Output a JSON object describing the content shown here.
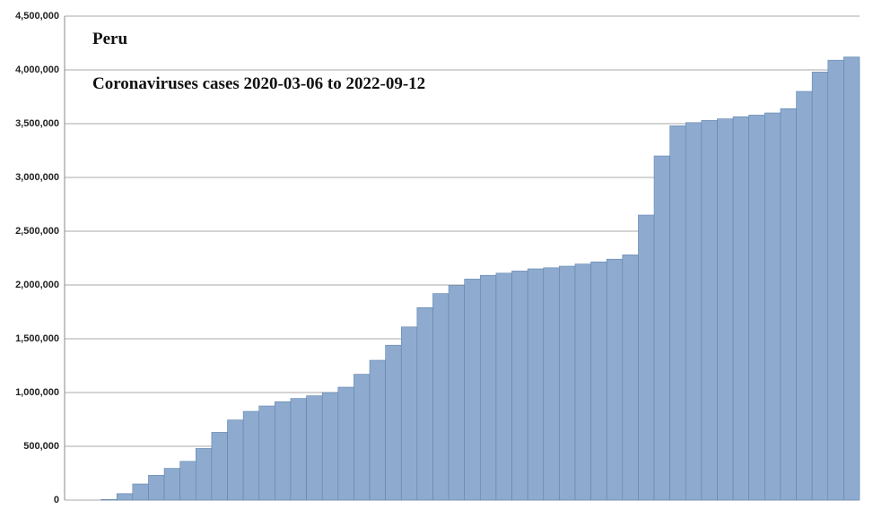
{
  "chart_data": {
    "type": "bar",
    "title": "Peru",
    "subtitle": "Coronaviruses cases 2020-03-06 to 2022-09-12",
    "values": [
      0,
      5000,
      60000,
      150000,
      230000,
      295000,
      360000,
      480000,
      630000,
      745000,
      825000,
      875000,
      915000,
      945000,
      970000,
      1000000,
      1050000,
      1170000,
      1300000,
      1440000,
      1610000,
      1790000,
      1920000,
      1995000,
      2055000,
      2090000,
      2110000,
      2130000,
      2150000,
      2160000,
      2175000,
      2195000,
      2215000,
      2240000,
      2280000,
      2650000,
      3200000,
      3480000,
      3510000,
      3530000,
      3545000,
      3565000,
      3580000,
      3600000,
      3640000,
      3800000,
      3980000,
      4090000,
      4120000
    ],
    "color": "#8eabcf",
    "ylim": [
      0,
      4500000
    ],
    "yticks": [
      0,
      {
        "value": 500000,
        "label": "500,000"
      },
      {
        "value": 1000000,
        "label": "1,000,000"
      },
      {
        "value": 1500000,
        "label": "1,500,000"
      },
      {
        "value": 2000000,
        "label": "2,000,000"
      },
      {
        "value": 2500000,
        "label": "2,500,000"
      },
      {
        "value": 3000000,
        "label": "3,000,000"
      },
      {
        "value": 3500000,
        "label": "3,500,000"
      },
      {
        "value": 4000000,
        "label": "4,000,000"
      },
      {
        "value": 4500000,
        "label": "4,500,000"
      }
    ],
    "grid": true
  }
}
